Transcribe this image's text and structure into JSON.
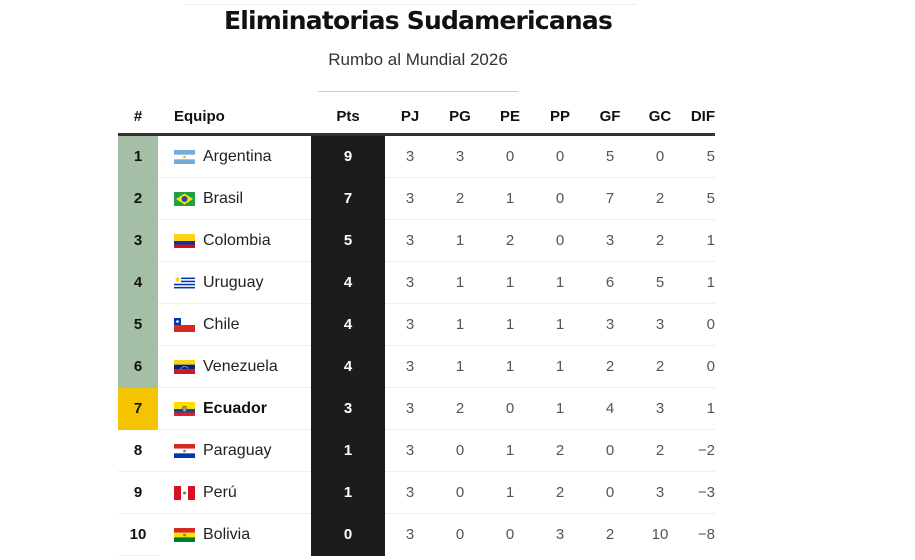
{
  "header": {
    "title": "Eliminatorias Sudamericanas",
    "subtitle": "Rumbo al Mundial 2026"
  },
  "table": {
    "columns": [
      "#",
      "Equipo",
      "Pts",
      "PJ",
      "PG",
      "PE",
      "PP",
      "GF",
      "GC",
      "DIF"
    ],
    "colors": {
      "qualify": "#a5bea6",
      "playoff": "#f5c400",
      "points_bg": "#1c1c1c"
    },
    "rows": [
      {
        "rank": "1",
        "team": "Argentina",
        "flag": "argentina-flag-icon",
        "pts": "9",
        "pj": "3",
        "pg": "3",
        "pe": "0",
        "pp": "0",
        "gf": "5",
        "gc": "0",
        "dif": "5",
        "zone": "qualify"
      },
      {
        "rank": "2",
        "team": "Brasil",
        "flag": "brazil-flag-icon",
        "pts": "7",
        "pj": "3",
        "pg": "2",
        "pe": "1",
        "pp": "0",
        "gf": "7",
        "gc": "2",
        "dif": "5",
        "zone": "qualify"
      },
      {
        "rank": "3",
        "team": "Colombia",
        "flag": "colombia-flag-icon",
        "pts": "5",
        "pj": "3",
        "pg": "1",
        "pe": "2",
        "pp": "0",
        "gf": "3",
        "gc": "2",
        "dif": "1",
        "zone": "qualify"
      },
      {
        "rank": "4",
        "team": "Uruguay",
        "flag": "uruguay-flag-icon",
        "pts": "4",
        "pj": "3",
        "pg": "1",
        "pe": "1",
        "pp": "1",
        "gf": "6",
        "gc": "5",
        "dif": "1",
        "zone": "qualify"
      },
      {
        "rank": "5",
        "team": "Chile",
        "flag": "chile-flag-icon",
        "pts": "4",
        "pj": "3",
        "pg": "1",
        "pe": "1",
        "pp": "1",
        "gf": "3",
        "gc": "3",
        "dif": "0",
        "zone": "qualify"
      },
      {
        "rank": "6",
        "team": "Venezuela",
        "flag": "venezuela-flag-icon",
        "pts": "4",
        "pj": "3",
        "pg": "1",
        "pe": "1",
        "pp": "1",
        "gf": "2",
        "gc": "2",
        "dif": "0",
        "zone": "qualify"
      },
      {
        "rank": "7",
        "team": "Ecuador",
        "flag": "ecuador-flag-icon",
        "pts": "3",
        "pj": "3",
        "pg": "2",
        "pe": "0",
        "pp": "1",
        "gf": "4",
        "gc": "3",
        "dif": "1",
        "zone": "playoff"
      },
      {
        "rank": "8",
        "team": "Paraguay",
        "flag": "paraguay-flag-icon",
        "pts": "1",
        "pj": "3",
        "pg": "0",
        "pe": "1",
        "pp": "2",
        "gf": "0",
        "gc": "2",
        "dif": "−2",
        "zone": "none"
      },
      {
        "rank": "9",
        "team": "Perú",
        "flag": "peru-flag-icon",
        "pts": "1",
        "pj": "3",
        "pg": "0",
        "pe": "1",
        "pp": "2",
        "gf": "0",
        "gc": "3",
        "dif": "−3",
        "zone": "none"
      },
      {
        "rank": "10",
        "team": "Bolivia",
        "flag": "bolivia-flag-icon",
        "pts": "0",
        "pj": "3",
        "pg": "0",
        "pe": "0",
        "pp": "3",
        "gf": "2",
        "gc": "10",
        "dif": "−8",
        "zone": "none"
      }
    ]
  }
}
